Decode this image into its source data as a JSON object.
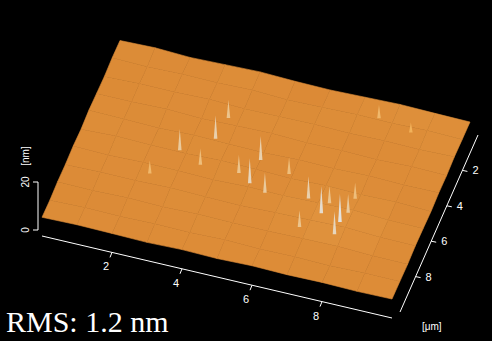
{
  "chart_data": {
    "type": "surface",
    "annotation": "RMS: 1.2 nm",
    "x_label": "[μm]",
    "z_label": "[nm]",
    "xlim": [
      0,
      10
    ],
    "ylim": [
      0,
      10
    ],
    "zlim": [
      0,
      20
    ],
    "xticks": [
      2,
      4,
      6,
      8
    ],
    "yticks": [
      2,
      4,
      6,
      8
    ],
    "zticks": [
      0,
      20
    ],
    "grid_x": [
      0,
      1,
      2,
      3,
      4,
      5,
      6,
      7,
      8,
      9,
      10
    ],
    "grid_y": [
      0,
      1,
      2,
      3,
      4,
      5,
      6,
      7,
      8,
      9,
      10
    ],
    "heights": [
      [
        5.2,
        5.6,
        5.0,
        5.4,
        5.8,
        5.3,
        5.1,
        5.5,
        5.9,
        5.6,
        5.4
      ],
      [
        5.4,
        5.1,
        5.5,
        5.2,
        5.6,
        5.0,
        5.3,
        5.7,
        5.4,
        5.8,
        5.5
      ],
      [
        5.0,
        5.5,
        5.3,
        5.7,
        5.2,
        5.4,
        5.6,
        5.2,
        5.5,
        5.3,
        5.7
      ],
      [
        5.3,
        5.2,
        5.6,
        5.1,
        5.5,
        5.8,
        5.2,
        5.4,
        5.1,
        5.6,
        5.2
      ],
      [
        5.6,
        5.4,
        5.1,
        5.6,
        5.3,
        5.0,
        5.5,
        5.3,
        5.7,
        5.2,
        5.4
      ],
      [
        5.1,
        5.7,
        5.4,
        5.2,
        5.7,
        5.5,
        5.1,
        5.6,
        5.3,
        5.5,
        5.0
      ],
      [
        5.5,
        5.2,
        5.6,
        5.4,
        5.1,
        5.6,
        5.4,
        5.8,
        6.2,
        5.4,
        5.3
      ],
      [
        5.2,
        5.5,
        5.3,
        5.7,
        5.4,
        5.2,
        5.7,
        6.0,
        6.4,
        5.6,
        5.5
      ],
      [
        5.4,
        5.1,
        5.5,
        5.2,
        5.6,
        5.4,
        5.3,
        5.6,
        5.8,
        5.3,
        5.1
      ],
      [
        5.0,
        5.4,
        5.2,
        5.5,
        5.3,
        5.6,
        5.2,
        5.4,
        5.1,
        5.5,
        5.3
      ],
      [
        5.3,
        5.6,
        5.4,
        5.1,
        5.5,
        5.2,
        5.6,
        5.3,
        5.5,
        5.2,
        5.4
      ]
    ],
    "spikes": [
      {
        "x": 2.8,
        "y": 4.9,
        "z": 14
      },
      {
        "x": 3.5,
        "y": 5.4,
        "z": 12
      },
      {
        "x": 3.6,
        "y": 3.9,
        "z": 15
      },
      {
        "x": 4.6,
        "y": 5.4,
        "z": 13
      },
      {
        "x": 5.0,
        "y": 5.8,
        "z": 16
      },
      {
        "x": 5.5,
        "y": 6.1,
        "z": 14
      },
      {
        "x": 5.9,
        "y": 4.8,
        "z": 12
      },
      {
        "x": 6.7,
        "y": 5.9,
        "z": 15
      },
      {
        "x": 7.2,
        "y": 6.5,
        "z": 17
      },
      {
        "x": 7.3,
        "y": 5.9,
        "z": 13
      },
      {
        "x": 7.8,
        "y": 6.8,
        "z": 18
      },
      {
        "x": 7.9,
        "y": 6.2,
        "z": 14
      },
      {
        "x": 7.9,
        "y": 5.3,
        "z": 12
      },
      {
        "x": 6.8,
        "y": 7.5,
        "z": 13
      },
      {
        "x": 3.7,
        "y": 2.7,
        "z": 13
      },
      {
        "x": 2.3,
        "y": 6.5,
        "z": 11
      },
      {
        "x": 5.0,
        "y": 4.4,
        "z": 15
      },
      {
        "x": 7.6,
        "y": 0.9,
        "z": 11
      },
      {
        "x": 8.6,
        "y": 1.3,
        "z": 10
      },
      {
        "x": 7.8,
        "y": 7.5,
        "z": 16
      }
    ]
  }
}
